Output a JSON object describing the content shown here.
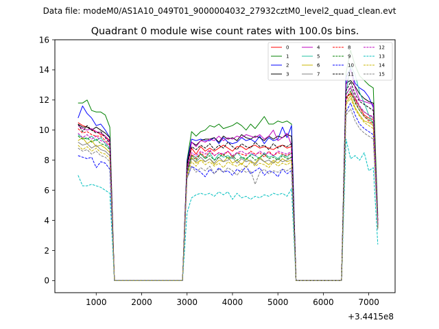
{
  "figure": {
    "suptitle": "Data file: modeM0/AS1A10_049T01_9000004032_27932cztM0_level2_quad_clean.evt"
  },
  "chart_data": {
    "type": "line",
    "title": "Quadrant 0 module wise count rates with 100.0s bins.",
    "xlabel": "",
    "ylabel": "",
    "x_offset_label": "+3.4415e8",
    "xlim": [
      90,
      7580
    ],
    "ylim": [
      -0.8,
      16
    ],
    "xticks": [
      1000,
      2000,
      3000,
      4000,
      5000,
      6000,
      7000
    ],
    "yticks": [
      0,
      2,
      4,
      6,
      8,
      10,
      12,
      14,
      16
    ],
    "legend_position": "top-right",
    "x": [
      600,
      700,
      800,
      900,
      1000,
      1100,
      1200,
      1300,
      1400,
      1500,
      1600,
      1700,
      1800,
      1900,
      2000,
      2100,
      2200,
      2300,
      2400,
      2500,
      2600,
      2700,
      2800,
      2900,
      3000,
      3100,
      3200,
      3300,
      3400,
      3500,
      3600,
      3700,
      3800,
      3900,
      4000,
      4100,
      4200,
      4300,
      4400,
      4500,
      4600,
      4700,
      4800,
      4900,
      5000,
      5100,
      5200,
      5300,
      5400,
      5500,
      5600,
      5700,
      5800,
      5900,
      6000,
      6100,
      6200,
      6300,
      6400,
      6500,
      6600,
      6700,
      6800,
      6900,
      7000,
      7100,
      7200
    ],
    "series": [
      {
        "name": "0",
        "color": "#ff0000",
        "dash": "solid",
        "values": [
          10.5,
          10.3,
          10.2,
          10.0,
          9.9,
          9.7,
          9.6,
          9.3,
          0.0,
          0.0,
          0.0,
          0.0,
          0.0,
          0.0,
          0.0,
          0.0,
          0.0,
          0.0,
          0.0,
          0.0,
          0.0,
          0.0,
          0.0,
          0.0,
          7.6,
          8.8,
          8.4,
          8.9,
          8.6,
          8.8,
          8.6,
          8.8,
          9.0,
          8.8,
          8.6,
          8.9,
          8.9,
          8.7,
          8.9,
          9.0,
          8.8,
          8.9,
          8.8,
          8.7,
          8.9,
          9.0,
          8.8,
          8.9,
          0.0,
          0.0,
          0.0,
          0.0,
          0.0,
          0.0,
          0.0,
          0.0,
          0.0,
          0.0,
          0.0,
          12.2,
          12.4,
          12.1,
          11.5,
          11.0,
          10.8,
          10.7,
          4.0
        ]
      },
      {
        "name": "1",
        "color": "#008000",
        "dash": "solid",
        "values": [
          11.8,
          11.8,
          12.0,
          11.3,
          11.2,
          11.2,
          11.0,
          10.2,
          0.0,
          0.0,
          0.0,
          0.0,
          0.0,
          0.0,
          0.0,
          0.0,
          0.0,
          0.0,
          0.0,
          0.0,
          0.0,
          0.0,
          0.0,
          0.0,
          8.0,
          9.9,
          9.6,
          9.9,
          10.0,
          10.3,
          10.2,
          10.4,
          10.1,
          10.2,
          10.3,
          10.5,
          10.3,
          10.0,
          10.4,
          10.1,
          10.5,
          10.9,
          10.4,
          10.4,
          10.6,
          10.5,
          10.6,
          10.4,
          0.0,
          0.0,
          0.0,
          0.0,
          0.0,
          0.0,
          0.0,
          0.0,
          0.0,
          0.0,
          0.0,
          13.8,
          15.3,
          14.3,
          13.6,
          13.3,
          13.0,
          12.8,
          4.3
        ]
      },
      {
        "name": "2",
        "color": "#0000ff",
        "dash": "solid",
        "values": [
          10.8,
          11.6,
          11.1,
          10.8,
          10.3,
          10.4,
          10.0,
          9.5,
          0.0,
          0.0,
          0.0,
          0.0,
          0.0,
          0.0,
          0.0,
          0.0,
          0.0,
          0.0,
          0.0,
          0.0,
          0.0,
          0.0,
          0.0,
          0.0,
          7.9,
          9.4,
          9.3,
          9.4,
          9.3,
          9.3,
          9.5,
          9.1,
          9.5,
          9.2,
          9.1,
          9.2,
          9.5,
          9.3,
          9.4,
          9.2,
          9.6,
          9.1,
          9.5,
          9.3,
          9.4,
          10.2,
          9.5,
          10.3,
          0.0,
          0.0,
          0.0,
          0.0,
          0.0,
          0.0,
          0.0,
          0.0,
          0.0,
          0.0,
          0.0,
          13.5,
          14.1,
          13.1,
          12.8,
          12.6,
          12.2,
          11.5,
          4.0
        ]
      },
      {
        "name": "3",
        "color": "#000000",
        "dash": "solid",
        "values": [
          10.4,
          10.2,
          10.2,
          10.0,
          10.2,
          10.0,
          9.8,
          9.5,
          0.0,
          0.0,
          0.0,
          0.0,
          0.0,
          0.0,
          0.0,
          0.0,
          0.0,
          0.0,
          0.0,
          0.0,
          0.0,
          0.0,
          0.0,
          0.0,
          7.8,
          9.2,
          9.0,
          9.3,
          9.4,
          9.4,
          9.5,
          9.2,
          9.6,
          9.4,
          9.5,
          9.3,
          9.7,
          9.5,
          9.4,
          9.6,
          9.5,
          9.3,
          9.6,
          9.4,
          9.6,
          9.5,
          9.7,
          9.6,
          0.0,
          0.0,
          0.0,
          0.0,
          0.0,
          0.0,
          0.0,
          0.0,
          0.0,
          0.0,
          0.0,
          13.1,
          13.3,
          12.9,
          12.4,
          12.1,
          11.9,
          11.8,
          3.5
        ]
      },
      {
        "name": "4",
        "color": "#bf00bf",
        "dash": "solid",
        "values": [
          10.3,
          10.1,
          10.0,
          10.1,
          9.9,
          9.8,
          9.6,
          9.2,
          0.0,
          0.0,
          0.0,
          0.0,
          0.0,
          0.0,
          0.0,
          0.0,
          0.0,
          0.0,
          0.0,
          0.0,
          0.0,
          0.0,
          0.0,
          0.0,
          7.4,
          9.2,
          8.9,
          9.3,
          9.2,
          9.4,
          9.3,
          9.6,
          9.3,
          9.5,
          9.4,
          9.6,
          9.5,
          9.7,
          9.6,
          9.5,
          9.7,
          9.4,
          9.6,
          10.0,
          9.3,
          9.5,
          9.8,
          9.0,
          0.0,
          0.0,
          0.0,
          0.0,
          0.0,
          0.0,
          0.0,
          0.0,
          0.0,
          0.0,
          0.0,
          13.0,
          14.0,
          12.8,
          12.0,
          11.9,
          11.8,
          11.7,
          3.8
        ]
      },
      {
        "name": "5",
        "color": "#20c0a0",
        "dash": "solid",
        "values": [
          9.7,
          9.5,
          9.4,
          9.6,
          9.3,
          9.5,
          9.1,
          8.8,
          0.0,
          0.0,
          0.0,
          0.0,
          0.0,
          0.0,
          0.0,
          0.0,
          0.0,
          0.0,
          0.0,
          0.0,
          0.0,
          0.0,
          0.0,
          0.0,
          7.3,
          8.3,
          8.2,
          8.4,
          8.1,
          8.5,
          8.0,
          8.4,
          8.2,
          8.3,
          8.1,
          8.5,
          8.2,
          8.0,
          8.4,
          8.3,
          8.1,
          8.5,
          8.2,
          8.3,
          8.1,
          8.4,
          8.2,
          8.5,
          0.0,
          0.0,
          0.0,
          0.0,
          0.0,
          0.0,
          0.0,
          0.0,
          0.0,
          0.0,
          0.0,
          12.5,
          14.3,
          13.7,
          12.5,
          11.8,
          11.0,
          10.4,
          3.7
        ]
      },
      {
        "name": "6",
        "color": "#c8b400",
        "dash": "solid",
        "values": [
          9.3,
          9.5,
          9.1,
          9.3,
          8.9,
          9.0,
          8.8,
          8.5,
          0.0,
          0.0,
          0.0,
          0.0,
          0.0,
          0.0,
          0.0,
          0.0,
          0.0,
          0.0,
          0.0,
          0.0,
          0.0,
          0.0,
          0.0,
          0.0,
          7.0,
          8.2,
          7.8,
          8.0,
          7.9,
          8.1,
          7.7,
          8.0,
          7.9,
          8.2,
          7.8,
          8.0,
          7.7,
          8.1,
          7.9,
          7.8,
          8.2,
          7.9,
          7.7,
          8.0,
          7.8,
          8.1,
          7.9,
          8.0,
          0.0,
          0.0,
          0.0,
          0.0,
          0.0,
          0.0,
          0.0,
          0.0,
          0.0,
          0.0,
          0.0,
          11.8,
          12.3,
          11.5,
          11.0,
          10.6,
          10.5,
          10.3,
          3.6
        ]
      },
      {
        "name": "7",
        "color": "#808080",
        "dash": "solid",
        "values": [
          9.2,
          9.0,
          9.1,
          8.8,
          9.0,
          8.7,
          8.6,
          8.3,
          0.0,
          0.0,
          0.0,
          0.0,
          0.0,
          0.0,
          0.0,
          0.0,
          0.0,
          0.0,
          0.0,
          0.0,
          0.0,
          0.0,
          0.0,
          0.0,
          7.1,
          8.1,
          7.9,
          8.2,
          7.9,
          8.1,
          7.8,
          8.2,
          7.9,
          8.0,
          8.2,
          7.8,
          8.1,
          7.9,
          8.0,
          7.7,
          8.1,
          7.9,
          8.0,
          7.8,
          8.1,
          7.9,
          8.0,
          8.2,
          0.0,
          0.0,
          0.0,
          0.0,
          0.0,
          0.0,
          0.0,
          0.0,
          0.0,
          0.0,
          0.0,
          12.4,
          12.8,
          12.0,
          11.5,
          11.2,
          11.0,
          10.8,
          3.6
        ]
      },
      {
        "name": "8",
        "color": "#ff0000",
        "dash": "dashed",
        "values": [
          10.1,
          9.8,
          9.9,
          9.7,
          9.6,
          9.6,
          9.3,
          9.0,
          0.0,
          0.0,
          0.0,
          0.0,
          0.0,
          0.0,
          0.0,
          0.0,
          0.0,
          0.0,
          0.0,
          0.0,
          0.0,
          0.0,
          0.0,
          0.0,
          7.3,
          8.4,
          8.1,
          8.5,
          8.2,
          8.6,
          8.3,
          8.5,
          8.3,
          8.6,
          8.2,
          8.5,
          8.4,
          8.3,
          8.6,
          8.4,
          8.5,
          8.2,
          8.6,
          8.3,
          8.5,
          8.4,
          8.3,
          8.5,
          0.0,
          0.0,
          0.0,
          0.0,
          0.0,
          0.0,
          0.0,
          0.0,
          0.0,
          0.0,
          0.0,
          12.0,
          12.5,
          11.9,
          11.3,
          10.9,
          10.6,
          10.4,
          3.9
        ]
      },
      {
        "name": "9",
        "color": "#008000",
        "dash": "dashed",
        "values": [
          9.6,
          9.4,
          9.5,
          9.2,
          9.4,
          9.1,
          9.0,
          8.7,
          0.0,
          0.0,
          0.0,
          0.0,
          0.0,
          0.0,
          0.0,
          0.0,
          0.0,
          0.0,
          0.0,
          0.0,
          0.0,
          0.0,
          0.0,
          0.0,
          7.2,
          8.3,
          8.0,
          8.4,
          8.1,
          8.3,
          8.0,
          8.2,
          8.4,
          8.1,
          8.3,
          8.0,
          8.2,
          8.1,
          8.3,
          8.0,
          8.2,
          8.4,
          8.1,
          8.2,
          8.0,
          8.3,
          8.1,
          8.2,
          0.0,
          0.0,
          0.0,
          0.0,
          0.0,
          0.0,
          0.0,
          0.0,
          0.0,
          0.0,
          0.0,
          12.1,
          12.6,
          11.8,
          11.3,
          10.9,
          10.7,
          10.5,
          3.7
        ]
      },
      {
        "name": "10",
        "color": "#0000ff",
        "dash": "dashed",
        "values": [
          8.3,
          8.2,
          8.1,
          8.2,
          7.5,
          7.9,
          7.8,
          7.4,
          0.0,
          0.0,
          0.0,
          0.0,
          0.0,
          0.0,
          0.0,
          0.0,
          0.0,
          0.0,
          0.0,
          0.0,
          0.0,
          0.0,
          0.0,
          0.0,
          6.8,
          7.6,
          7.4,
          7.2,
          6.9,
          7.4,
          7.1,
          7.5,
          7.2,
          7.3,
          7.0,
          7.4,
          7.2,
          7.6,
          7.1,
          7.3,
          7.5,
          7.0,
          7.3,
          7.2,
          6.9,
          7.4,
          7.1,
          7.3,
          0.0,
          0.0,
          0.0,
          0.0,
          0.0,
          0.0,
          0.0,
          0.0,
          0.0,
          0.0,
          0.0,
          11.2,
          11.8,
          11.0,
          10.4,
          10.1,
          9.9,
          9.7,
          3.6
        ]
      },
      {
        "name": "11",
        "color": "#000000",
        "dash": "dashed",
        "values": [
          10.4,
          9.9,
          10.3,
          10.0,
          9.8,
          9.9,
          9.5,
          9.1,
          0.0,
          0.0,
          0.0,
          0.0,
          0.0,
          0.0,
          0.0,
          0.0,
          0.0,
          0.0,
          0.0,
          0.0,
          0.0,
          0.0,
          0.0,
          0.0,
          7.6,
          8.9,
          8.7,
          9.0,
          8.8,
          9.1,
          8.7,
          9.0,
          8.8,
          9.2,
          8.9,
          8.7,
          9.1,
          8.9,
          8.8,
          9.2,
          8.9,
          9.0,
          8.7,
          9.1,
          8.8,
          9.0,
          8.9,
          9.1,
          0.0,
          0.0,
          0.0,
          0.0,
          0.0,
          0.0,
          0.0,
          0.0,
          0.0,
          0.0,
          0.0,
          12.6,
          13.2,
          12.4,
          11.9,
          11.7,
          11.5,
          11.3,
          3.9
        ]
      },
      {
        "name": "12",
        "color": "#bf00bf",
        "dash": "dashed",
        "values": [
          9.8,
          9.5,
          9.7,
          9.4,
          9.6,
          9.3,
          9.2,
          8.9,
          0.0,
          0.0,
          0.0,
          0.0,
          0.0,
          0.0,
          0.0,
          0.0,
          0.0,
          0.0,
          0.0,
          0.0,
          0.0,
          0.0,
          0.0,
          0.0,
          7.4,
          8.5,
          8.3,
          8.6,
          8.4,
          8.7,
          8.3,
          8.5,
          8.4,
          8.6,
          8.3,
          8.5,
          8.6,
          8.4,
          8.5,
          8.3,
          8.6,
          8.4,
          8.5,
          8.3,
          8.6,
          8.5,
          8.4,
          8.6,
          0.0,
          0.0,
          0.0,
          0.0,
          0.0,
          0.0,
          0.0,
          0.0,
          0.0,
          0.0,
          0.0,
          12.3,
          12.9,
          12.2,
          11.6,
          11.2,
          11.0,
          10.9,
          3.8
        ]
      },
      {
        "name": "13",
        "color": "#00bfbf",
        "dash": "dashed",
        "values": [
          7.0,
          6.3,
          6.3,
          6.4,
          6.3,
          6.2,
          6.0,
          5.8,
          0.0,
          0.0,
          0.0,
          0.0,
          0.0,
          0.0,
          0.0,
          0.0,
          0.0,
          0.0,
          0.0,
          0.0,
          0.0,
          0.0,
          0.0,
          0.0,
          4.5,
          5.5,
          5.7,
          5.8,
          5.7,
          5.8,
          5.6,
          5.9,
          5.7,
          5.9,
          5.4,
          5.8,
          5.5,
          5.6,
          5.4,
          5.6,
          5.5,
          5.7,
          5.6,
          5.8,
          5.7,
          5.8,
          5.6,
          6.1,
          0.0,
          0.0,
          0.0,
          0.0,
          0.0,
          0.0,
          0.0,
          0.0,
          0.0,
          0.0,
          0.0,
          9.4,
          8.1,
          8.3,
          8.0,
          8.5,
          7.3,
          7.5,
          2.4
        ]
      },
      {
        "name": "14",
        "color": "#c8b400",
        "dash": "dashed",
        "values": [
          9.0,
          8.7,
          8.9,
          8.6,
          8.8,
          8.5,
          8.4,
          8.1,
          0.0,
          0.0,
          0.0,
          0.0,
          0.0,
          0.0,
          0.0,
          0.0,
          0.0,
          0.0,
          0.0,
          0.0,
          0.0,
          0.0,
          0.0,
          0.0,
          6.9,
          7.9,
          7.6,
          8.0,
          7.7,
          7.9,
          7.6,
          7.8,
          7.5,
          7.9,
          7.7,
          7.6,
          7.8,
          7.5,
          7.9,
          7.6,
          7.8,
          7.7,
          7.5,
          7.9,
          7.6,
          7.8,
          7.7,
          7.9,
          0.0,
          0.0,
          0.0,
          0.0,
          0.0,
          0.0,
          0.0,
          0.0,
          0.0,
          0.0,
          0.0,
          11.7,
          12.1,
          11.4,
          10.9,
          10.5,
          10.3,
          10.1,
          3.5
        ]
      },
      {
        "name": "15",
        "color": "#808080",
        "dash": "dashed",
        "values": [
          8.8,
          8.6,
          8.7,
          8.4,
          8.6,
          8.3,
          8.2,
          7.9,
          0.0,
          0.0,
          0.0,
          0.0,
          0.0,
          0.0,
          0.0,
          0.0,
          0.0,
          0.0,
          0.0,
          0.0,
          0.0,
          0.0,
          0.0,
          0.0,
          6.8,
          7.6,
          7.2,
          7.5,
          7.3,
          7.6,
          7.1,
          7.4,
          7.2,
          7.5,
          7.3,
          7.0,
          7.4,
          7.2,
          7.3,
          6.4,
          7.2,
          7.4,
          7.1,
          7.3,
          7.2,
          7.4,
          7.3,
          7.5,
          0.0,
          0.0,
          0.0,
          0.0,
          0.0,
          0.0,
          0.0,
          0.0,
          0.0,
          0.0,
          0.0,
          11.0,
          11.4,
          10.6,
          10.1,
          9.8,
          9.6,
          9.4,
          3.4
        ]
      }
    ]
  }
}
